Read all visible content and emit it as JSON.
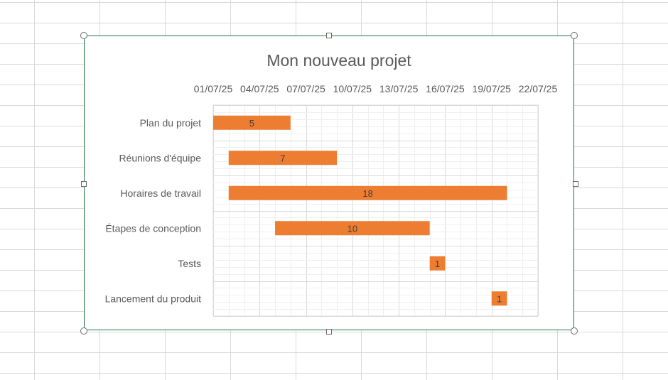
{
  "chart_data": {
    "type": "bar",
    "orientation": "horizontal",
    "stacked_gantt": true,
    "title": "Mon nouveau projet",
    "x_axis": {
      "kind": "date",
      "position": "top",
      "min": "2025-07-01",
      "max": "2025-07-22",
      "major_tick_days": 3,
      "tick_labels": [
        "01/07/25",
        "04/07/25",
        "07/07/25",
        "10/07/25",
        "13/07/25",
        "16/07/25",
        "19/07/25",
        "22/07/25"
      ]
    },
    "categories": [
      "Plan du projet",
      "Réunions d'équipe",
      "Horaires de travail",
      "Étapes de conception",
      "Tests",
      "Lancement du produit"
    ],
    "start_dates": [
      "2025-07-01",
      "2025-07-02",
      "2025-07-02",
      "2025-07-05",
      "2025-07-15",
      "2025-07-19"
    ],
    "durations": [
      5,
      7,
      18,
      10,
      1,
      1
    ],
    "bar_color": "#ed7d31",
    "grid": true
  },
  "selection": {
    "frame_color": "#217346"
  }
}
